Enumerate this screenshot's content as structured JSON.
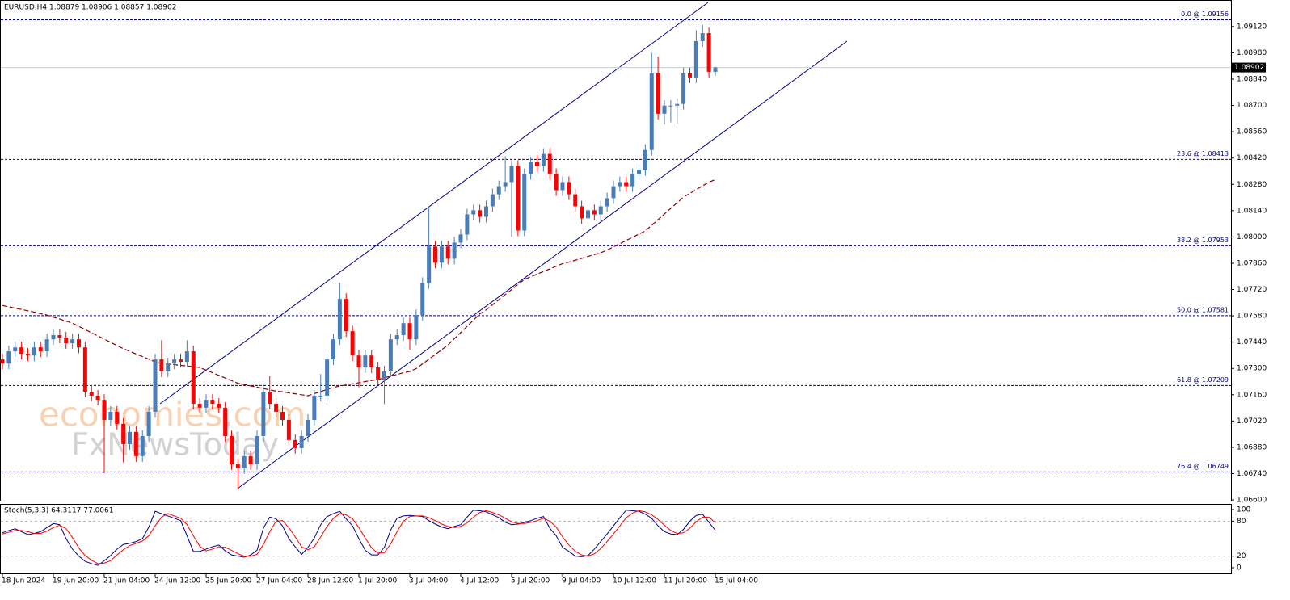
{
  "chart_data": [
    {
      "type": "candlestick",
      "title": "EURUSD,H4  1.08879 1.08906 1.08857 1.08902",
      "watermark": [
        "economies.com",
        "FxNewsToday"
      ],
      "categories": [
        "18 Jun 2024",
        null,
        null,
        null,
        null,
        null,
        null,
        null,
        "19 Jun 20:00",
        null,
        null,
        null,
        null,
        null,
        null,
        null,
        "21 Jun 04:00",
        null,
        null,
        null,
        null,
        null,
        null,
        null,
        "24 Jun 12:00",
        null,
        null,
        null,
        null,
        null,
        null,
        null,
        "25 Jun 20:00",
        null,
        null,
        null,
        null,
        null,
        null,
        null,
        "27 Jun 04:00",
        null,
        null,
        null,
        null,
        null,
        null,
        null,
        "28 Jun 12:00",
        null,
        null,
        null,
        null,
        null,
        null,
        null,
        "1 Jul 20:00",
        null,
        null,
        null,
        null,
        null,
        null,
        null,
        "3 Jul 04:00",
        null,
        null,
        null,
        null,
        null,
        null,
        null,
        "4 Jul 12:00",
        null,
        null,
        null,
        null,
        null,
        null,
        null,
        "5 Jul 20:00",
        null,
        null,
        null,
        null,
        null,
        null,
        null,
        "9 Jul 04:00",
        null,
        null,
        null,
        null,
        null,
        null,
        null,
        "10 Jul 12:00",
        null,
        null,
        null,
        null,
        null,
        null,
        null,
        "11 Jul 20:00",
        null,
        null,
        null,
        null,
        null,
        null,
        null,
        "15 Jul 04:00"
      ],
      "open": [
        1.07348,
        1.07326,
        1.07391,
        1.07412,
        1.07378,
        1.07369,
        1.07412,
        1.07391,
        1.07455,
        1.07477,
        1.07464,
        1.07434,
        1.07455,
        1.07412,
        1.07176,
        1.07155,
        1.07133,
        1.07026,
        1.07069,
        1.07005,
        1.06897,
        1.06962,
        1.06833,
        1.0694,
        1.07069,
        1.07348,
        1.07284,
        1.07326,
        1.07348,
        1.07335,
        1.07391,
        1.07112,
        1.07091,
        1.07133,
        1.07112,
        1.07091,
        1.0694,
        1.0679,
        1.06769,
        1.06833,
        1.0679,
        1.0694,
        1.07176,
        1.07112,
        1.07069,
        1.07026,
        1.06919,
        1.06876,
        1.0694,
        1.07026,
        1.07155,
        1.07155,
        1.07348,
        1.07455,
        1.0767,
        1.07498,
        1.07369,
        1.07305,
        1.07369,
        1.07305,
        1.07241,
        1.07284,
        1.07455,
        1.07477,
        1.07541,
        1.07455,
        1.07584,
        1.07755,
        1.07949,
        1.07863,
        1.07949,
        1.07884,
        1.0797,
        1.08013,
        1.0812,
        1.08142,
        1.08107,
        1.08163,
        1.08227,
        1.0827,
        1.08292,
        1.08378,
        1.08034,
        1.08335,
        1.08399,
        1.08378,
        1.08442,
        1.08335,
        1.08249,
        1.08292,
        1.08227,
        1.08163,
        1.08099,
        1.08142,
        1.0812,
        1.08163,
        1.08206,
        1.0827,
        1.08292,
        1.0827,
        1.08335,
        1.08356,
        1.08463,
        1.08871,
        1.08656,
        1.08699,
        1.08699,
        1.08708,
        1.08871,
        1.08849,
        1.09042,
        1.09085,
        1.08879
      ],
      "high": [
        1.07378,
        1.07421,
        1.07442,
        1.07442,
        1.07408,
        1.07442,
        1.07442,
        1.07485,
        1.07507,
        1.07507,
        1.07494,
        1.07485,
        1.07485,
        1.07442,
        1.07206,
        1.07185,
        1.07163,
        1.07099,
        1.07099,
        1.07035,
        1.06992,
        1.06992,
        1.0697,
        1.07099,
        1.07378,
        1.0745,
        1.07356,
        1.07378,
        1.07378,
        1.0745,
        1.07421,
        1.07142,
        1.07163,
        1.07163,
        1.07142,
        1.07121,
        1.0697,
        1.0682,
        1.06863,
        1.06863,
        1.0697,
        1.07206,
        1.0726,
        1.07142,
        1.07099,
        1.07056,
        1.06949,
        1.0697,
        1.07056,
        1.07185,
        1.0727,
        1.07378,
        1.07485,
        1.07755,
        1.077,
        1.07528,
        1.07399,
        1.07399,
        1.07399,
        1.07335,
        1.07314,
        1.07485,
        1.07507,
        1.07571,
        1.07571,
        1.07614,
        1.07785,
        1.0816,
        1.07979,
        1.07979,
        1.07979,
        1.08,
        1.08043,
        1.0815,
        1.08172,
        1.08172,
        1.08193,
        1.08257,
        1.083,
        1.0843,
        1.08408,
        1.08408,
        1.08365,
        1.08429,
        1.0844,
        1.08472,
        1.08472,
        1.08365,
        1.08322,
        1.08322,
        1.08257,
        1.08193,
        1.08172,
        1.08172,
        1.08193,
        1.08236,
        1.083,
        1.08322,
        1.08322,
        1.08365,
        1.08386,
        1.08493,
        1.0898,
        1.0896,
        1.08729,
        1.08729,
        1.08738,
        1.08901,
        1.08901,
        1.091,
        1.0913,
        1.09115,
        1.08906
      ],
      "low": [
        1.07296,
        1.07296,
        1.07361,
        1.07348,
        1.07339,
        1.07339,
        1.07361,
        1.07361,
        1.07425,
        1.07434,
        1.07404,
        1.07404,
        1.07382,
        1.07146,
        1.07125,
        1.07103,
        1.06741,
        1.06996,
        1.06975,
        1.068,
        1.06867,
        1.06803,
        1.06803,
        1.0691,
        1.07039,
        1.07254,
        1.07254,
        1.07296,
        1.07305,
        1.07305,
        1.07082,
        1.07061,
        1.07061,
        1.07082,
        1.07061,
        1.0691,
        1.0676,
        1.0666,
        1.06739,
        1.0676,
        1.0676,
        1.0691,
        1.07082,
        1.07039,
        1.06996,
        1.06889,
        1.06846,
        1.06846,
        1.0691,
        1.06996,
        1.07125,
        1.07125,
        1.07318,
        1.07425,
        1.07468,
        1.07339,
        1.072,
        1.07275,
        1.07275,
        1.07211,
        1.0711,
        1.07254,
        1.07425,
        1.07447,
        1.074,
        1.07425,
        1.07554,
        1.07725,
        1.07833,
        1.07833,
        1.07854,
        1.07854,
        1.0794,
        1.07983,
        1.0809,
        1.08077,
        1.08077,
        1.08133,
        1.08197,
        1.0824,
        1.08,
        1.08004,
        1.08004,
        1.08305,
        1.08348,
        1.08348,
        1.08305,
        1.08219,
        1.08219,
        1.08197,
        1.08133,
        1.08069,
        1.08069,
        1.0809,
        1.0809,
        1.08133,
        1.08176,
        1.0824,
        1.0824,
        1.0824,
        1.08305,
        1.08326,
        1.08433,
        1.08626,
        1.086,
        1.0861,
        1.086,
        1.08678,
        1.08819,
        1.08819,
        1.09012,
        1.08849,
        1.08857
      ],
      "close": [
        1.07326,
        1.07391,
        1.07412,
        1.07378,
        1.07369,
        1.07412,
        1.07391,
        1.07455,
        1.07477,
        1.07464,
        1.07434,
        1.07455,
        1.07412,
        1.07176,
        1.07155,
        1.07133,
        1.07026,
        1.07069,
        1.07005,
        1.06897,
        1.06962,
        1.06833,
        1.0694,
        1.07069,
        1.07348,
        1.07284,
        1.07326,
        1.07348,
        1.07335,
        1.07391,
        1.07112,
        1.07091,
        1.07133,
        1.07112,
        1.07091,
        1.0694,
        1.0679,
        1.06769,
        1.06833,
        1.0679,
        1.0694,
        1.07176,
        1.07112,
        1.07069,
        1.07026,
        1.06919,
        1.06876,
        1.0694,
        1.07026,
        1.07155,
        1.07155,
        1.07348,
        1.07455,
        1.0767,
        1.07498,
        1.07369,
        1.07305,
        1.07369,
        1.07305,
        1.07241,
        1.07284,
        1.07455,
        1.07477,
        1.07541,
        1.07455,
        1.07584,
        1.07755,
        1.07949,
        1.07863,
        1.07949,
        1.07884,
        1.0797,
        1.08013,
        1.0812,
        1.08142,
        1.08107,
        1.08163,
        1.08227,
        1.0827,
        1.08292,
        1.08378,
        1.08034,
        1.08335,
        1.08399,
        1.08378,
        1.08442,
        1.08335,
        1.08249,
        1.08292,
        1.08227,
        1.08163,
        1.08099,
        1.08142,
        1.0812,
        1.08163,
        1.08206,
        1.0827,
        1.08292,
        1.0827,
        1.08335,
        1.08356,
        1.08463,
        1.08871,
        1.08656,
        1.08699,
        1.08699,
        1.08708,
        1.08871,
        1.08849,
        1.09042,
        1.09085,
        1.08879,
        1.08902
      ],
      "up_color": "#4a7db8",
      "down_color": "#ff0000",
      "moving_average": {
        "color": "#8b0000",
        "values": [
          1.07635,
          1.07628,
          1.07621,
          1.07614,
          1.07607,
          1.076,
          1.07592,
          1.07584,
          1.07573,
          1.07563,
          1.07552,
          1.07541,
          1.07524,
          1.07507,
          1.0749,
          1.07473,
          1.07456,
          1.07439,
          1.07422,
          1.07405,
          1.07391,
          1.07377,
          1.07363,
          1.07349,
          1.07335,
          1.07326,
          1.07323,
          1.0732,
          1.07316,
          1.07313,
          1.07309,
          1.07305,
          1.07291,
          1.07277,
          1.07263,
          1.07249,
          1.07235,
          1.07221,
          1.07214,
          1.07207,
          1.072,
          1.07193,
          1.07186,
          1.07179,
          1.07176,
          1.0717,
          1.07165,
          1.0716,
          1.07155,
          1.07166,
          1.07177,
          1.07188,
          1.07199,
          1.07206,
          1.07212,
          1.07218,
          1.07224,
          1.0723,
          1.07236,
          1.07241,
          1.0725,
          1.07259,
          1.07268,
          1.07277,
          1.07284,
          1.07299,
          1.07324,
          1.07349,
          1.07374,
          1.07399,
          1.07425,
          1.07458,
          1.07491,
          1.07524,
          1.07557,
          1.0759,
          1.07612,
          1.07639,
          1.07666,
          1.07693,
          1.0772,
          1.07747,
          1.07774,
          1.07788,
          1.07802,
          1.07816,
          1.0783,
          1.07844,
          1.07858,
          1.07866,
          1.07876,
          1.07886,
          1.07896,
          1.07906,
          1.07916,
          1.0793,
          1.07947,
          1.07964,
          1.07981,
          1.07998,
          1.08015,
          1.08032,
          1.08062,
          1.08092,
          1.08122,
          1.08152,
          1.08182,
          1.08212,
          1.08232,
          1.08252,
          1.08272,
          1.08292,
          1.08305
        ]
      },
      "last_price": 1.08902,
      "last_price_color": "#add8e6",
      "fib_levels": [
        {
          "value": 1.09156,
          "label": "0.0 @ 1.09156"
        },
        {
          "value": 1.08413,
          "label": "23.6 @ 1.08413"
        },
        {
          "value": 1.07953,
          "label": "38.2 @ 1.07953"
        },
        {
          "value": 1.07581,
          "label": "50.0 @ 1.07581"
        },
        {
          "value": 1.07209,
          "label": "61.8 @ 1.07209"
        },
        {
          "value": 1.06749,
          "label": "76.4 @ 1.06749"
        }
      ],
      "fib_color": "#00008b",
      "ylim": [
        1.06596,
        1.09257
      ],
      "yticks": [
        {
          "value": 1.0912,
          "label": "1.09120"
        },
        {
          "value": 1.0898,
          "label": "1.08980"
        },
        {
          "value": 1.0884,
          "label": "1.08840"
        },
        {
          "value": 1.087,
          "label": "1.08700"
        },
        {
          "value": 1.0856,
          "label": "1.08560"
        },
        {
          "value": 1.0842,
          "label": "1.08420"
        },
        {
          "value": 1.0828,
          "label": "1.08280"
        },
        {
          "value": 1.0814,
          "label": "1.08140"
        },
        {
          "value": 1.08,
          "label": "1.08000"
        },
        {
          "value": 1.0786,
          "label": "1.07860"
        },
        {
          "value": 1.0772,
          "label": "1.07720"
        },
        {
          "value": 1.0758,
          "label": "1.07580"
        },
        {
          "value": 1.0744,
          "label": "1.07440"
        },
        {
          "value": 1.073,
          "label": "1.07300"
        },
        {
          "value": 1.0716,
          "label": "1.07160"
        },
        {
          "value": 1.0702,
          "label": "1.07020"
        },
        {
          "value": 1.0688,
          "label": "1.06880"
        },
        {
          "value": 1.0674,
          "label": "1.06740"
        },
        {
          "value": 1.066,
          "label": "1.06600"
        }
      ]
    },
    {
      "type": "line",
      "title": "Stoch(5,3,3) 64.3117 77.0061",
      "series": [
        {
          "color": "#00008b",
          "values": [
            60,
            64,
            67,
            62,
            57,
            59,
            62,
            69,
            76,
            74,
            50,
            32,
            20,
            11,
            7,
            4,
            12,
            21,
            32,
            40,
            42,
            45,
            50,
            70,
            97,
            93,
            89,
            85,
            81,
            55,
            28,
            28,
            32,
            36,
            39,
            29,
            22,
            20,
            18,
            22,
            30,
            68,
            87,
            84,
            72,
            50,
            36,
            23,
            35,
            51,
            74,
            88,
            93,
            97,
            84,
            72,
            50,
            30,
            22,
            22,
            35,
            65,
            85,
            89,
            90,
            89,
            88,
            81,
            75,
            70,
            67,
            71,
            74,
            87,
            99,
            98,
            96,
            91,
            86,
            78,
            74,
            75,
            78,
            81,
            85,
            88,
            68,
            55,
            35,
            28,
            20,
            19,
            21,
            32,
            45,
            58,
            72,
            86,
            99,
            98,
            97,
            92,
            85,
            72,
            62,
            58,
            57,
            66,
            80,
            90,
            92,
            78,
            64.3117
          ]
        },
        {
          "color": "#ff0000",
          "values": [
            58,
            61,
            64,
            64,
            62,
            59,
            59,
            63,
            69,
            73,
            67,
            52,
            34,
            21,
            13,
            7,
            8,
            12,
            22,
            31,
            38,
            42,
            46,
            55,
            72,
            87,
            93,
            89,
            85,
            74,
            55,
            37,
            29,
            32,
            36,
            35,
            30,
            24,
            20,
            20,
            23,
            40,
            62,
            80,
            81,
            69,
            53,
            36,
            31,
            36,
            53,
            71,
            85,
            93,
            91,
            84,
            69,
            51,
            34,
            25,
            26,
            41,
            62,
            80,
            88,
            89,
            89,
            86,
            81,
            75,
            71,
            69,
            71,
            77,
            87,
            95,
            98,
            95,
            91,
            85,
            79,
            76,
            76,
            78,
            81,
            85,
            80,
            70,
            53,
            39,
            28,
            22,
            20,
            24,
            33,
            45,
            58,
            72,
            86,
            94,
            98,
            96,
            91,
            83,
            73,
            64,
            59,
            60,
            68,
            79,
            87,
            87,
            77.0061
          ]
        }
      ],
      "levels": [
        80,
        20
      ],
      "ylim": [
        0,
        100
      ],
      "yticks": [
        100,
        80,
        20,
        0
      ]
    }
  ]
}
